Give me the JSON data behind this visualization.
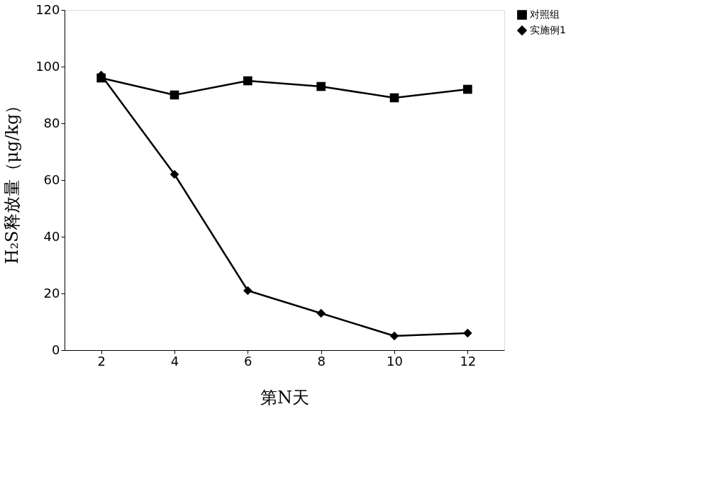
{
  "chart_data": {
    "type": "line",
    "xlabel": "第N天",
    "ylabel": "H₂S释放量（μg/kg）",
    "categories": [
      "2",
      "4",
      "6",
      "8",
      "10",
      "12"
    ],
    "series": [
      {
        "name": "对照组",
        "color": "#000000",
        "marker": "square",
        "values": [
          96,
          90,
          95,
          93,
          89,
          92
        ]
      },
      {
        "name": "实施例1",
        "color": "#000000",
        "marker": "diamond",
        "values": [
          97,
          62,
          21,
          13,
          5,
          6
        ]
      }
    ],
    "ylim": [
      0,
      120
    ],
    "yticks": [
      0,
      20,
      40,
      60,
      80,
      100,
      120
    ],
    "grid": false,
    "legend": "right",
    "line_style": "solid"
  }
}
